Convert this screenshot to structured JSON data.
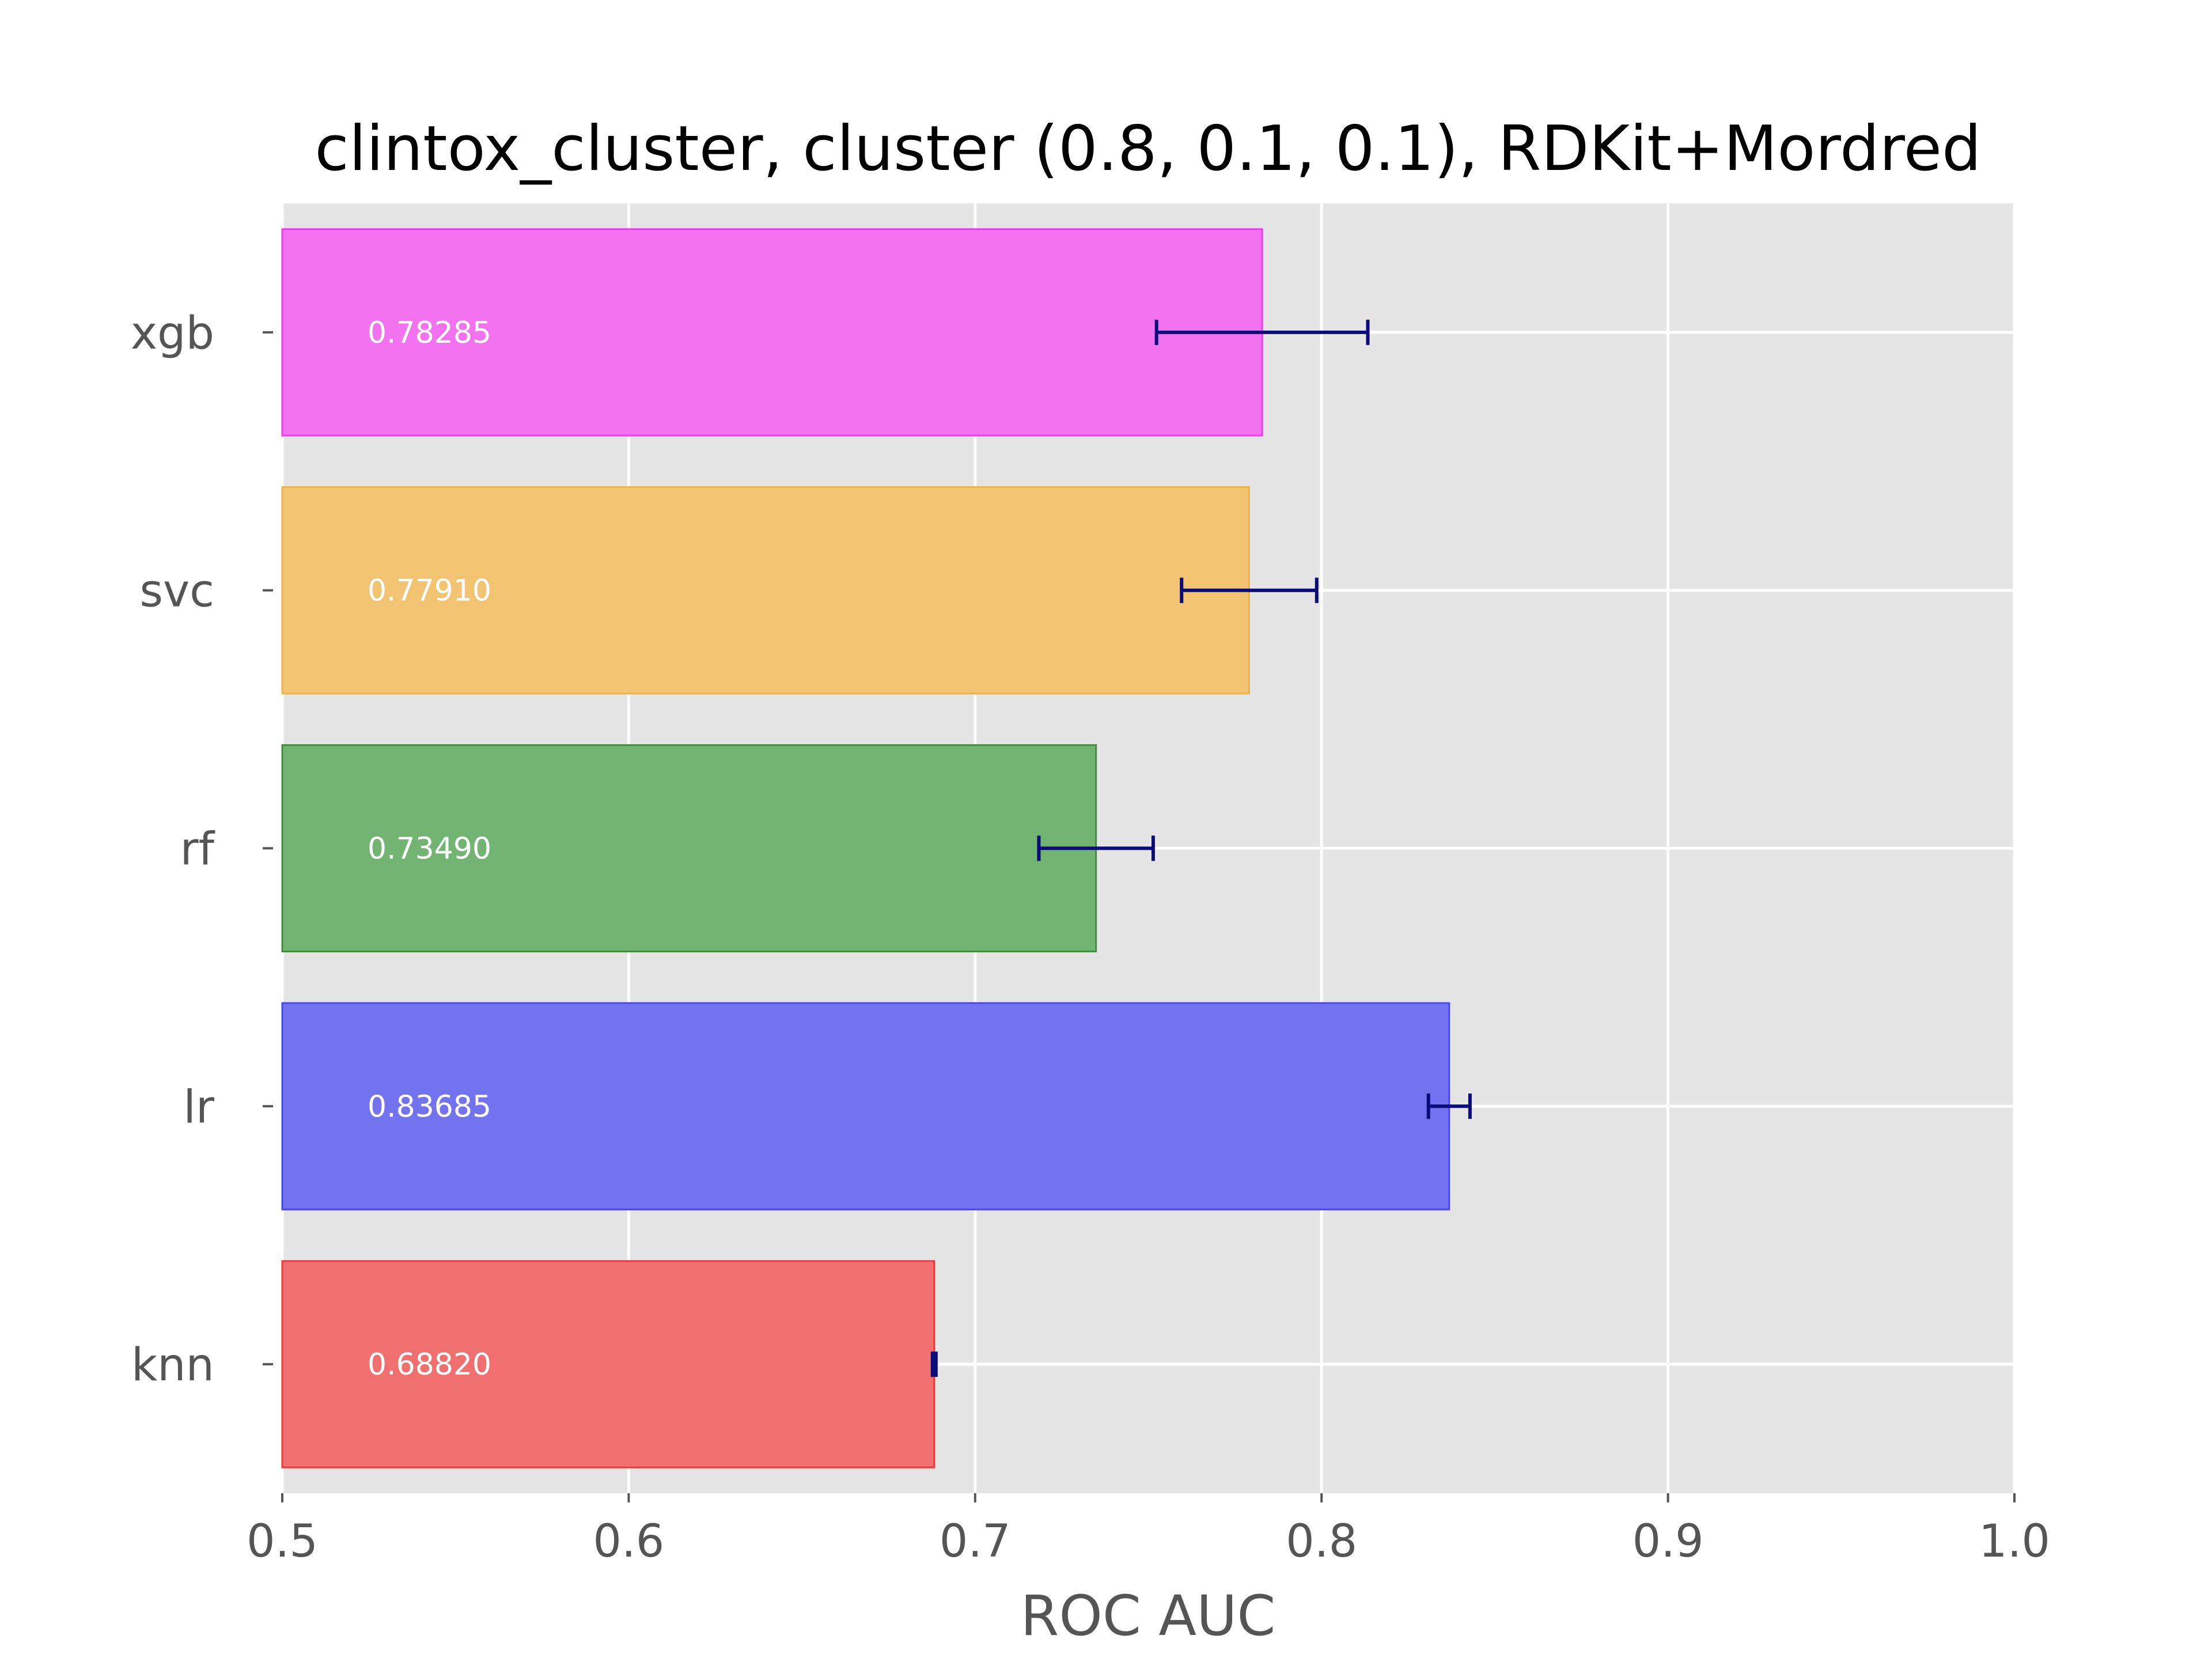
{
  "chart_data": {
    "type": "bar",
    "orientation": "horizontal",
    "title": "clintox_cluster, cluster (0.8, 0.1, 0.1), RDKit+Mordred",
    "xlabel": "ROC AUC",
    "ylabel": "",
    "xlim": [
      0.5,
      1.0
    ],
    "x_ticks": [
      "0.5",
      "0.6",
      "0.7",
      "0.8",
      "0.9",
      "1.0"
    ],
    "grid": true,
    "categories": [
      "knn",
      "lr",
      "rf",
      "svc",
      "xgb"
    ],
    "values": [
      0.6882,
      0.83685,
      0.7349,
      0.7791,
      0.78285
    ],
    "value_labels": [
      "0.68820",
      "0.83685",
      "0.73490",
      "0.77910",
      "0.78285"
    ],
    "error": [
      0.0005,
      0.006,
      0.0165,
      0.0195,
      0.0305
    ],
    "colors": [
      "#f07070",
      "#7373f0",
      "#72b472",
      "#f2c472",
      "#f272f0"
    ],
    "edge_colors": [
      "#f03a3a",
      "#4848ec",
      "#3f8f3f",
      "#f0b04a",
      "#ee3cee"
    ],
    "error_color": "#0b0b7a",
    "background": "#e5e5e5"
  }
}
